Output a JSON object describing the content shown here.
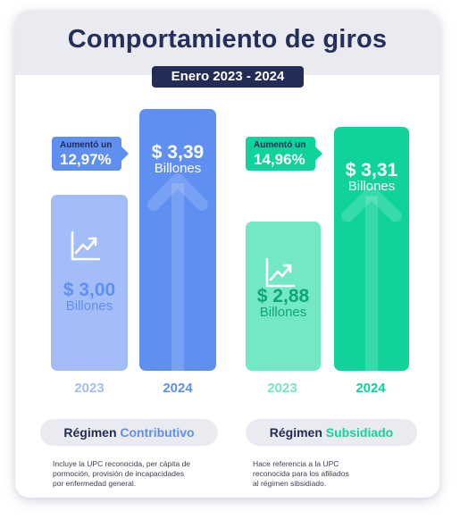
{
  "title": "Comportamiento de giros",
  "period": "Enero 2023 - 2024",
  "colors": {
    "navy": "#232c56",
    "contributivo_2023": "#a3bdf9",
    "contributivo_2024": "#5f90f1",
    "subsidiado_2023": "#72e8c4",
    "subsidiado_2024": "#10d39b"
  },
  "icons": [
    "trend-up-icon",
    "arrow-up-icon"
  ],
  "groups": [
    {
      "regimen_label": "Régimen",
      "regimen_highlight": "Contributivo",
      "callout_label": "Aumentó un",
      "callout_value": "12,97%",
      "description": "Incluye la UPC reconocida, per cápita de\npormoción, provisión de incapacidades\npor enfermedad general.",
      "bars": [
        {
          "year": "2023",
          "value_label": "$ 3,00",
          "unit": "Billones"
        },
        {
          "year": "2024",
          "value_label": "$ 3,39",
          "unit": "Billones"
        }
      ]
    },
    {
      "regimen_label": "Régimen",
      "regimen_highlight": "Subsidiado",
      "callout_label": "Aumentó un",
      "callout_value": "14,96%",
      "description": "Hace referencia a la UPC\nreconocida para los afiliados\nal régimen sibsidiado.",
      "bars": [
        {
          "year": "2023",
          "value_label": "$ 2,88",
          "unit": "Billones"
        },
        {
          "year": "2024",
          "value_label": "$ 3,31",
          "unit": "Billones"
        }
      ]
    }
  ],
  "chart_data": {
    "type": "bar",
    "title": "Comportamiento de giros",
    "subtitle": "Enero 2023 - 2024",
    "categories": [
      "2023",
      "2024"
    ],
    "series": [
      {
        "name": "Régimen Contributivo",
        "values": [
          3.0,
          3.39
        ],
        "increase_pct": 12.97
      },
      {
        "name": "Régimen Subsidiado",
        "values": [
          2.88,
          3.31
        ],
        "increase_pct": 14.96
      }
    ],
    "unit": "Billones",
    "ylim": [
      0,
      3.39
    ]
  }
}
